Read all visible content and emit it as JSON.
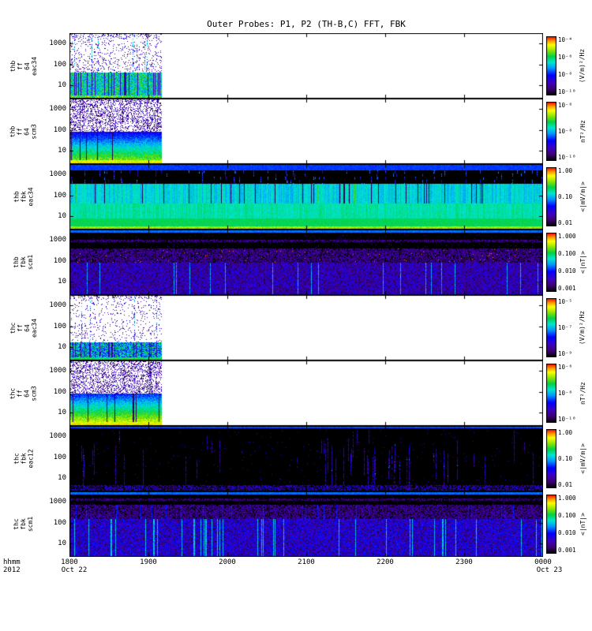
{
  "title": "Outer Probes: P1, P2 (TH-B,C) FFT, FBK",
  "footer": {
    "time_format_label": "hhmm",
    "year_label": "2012"
  },
  "chart_data": {
    "type": "heatmap",
    "title": "Outer Probes: P1, P2 (TH-B,C) FFT, FBK",
    "x_axis": {
      "ticks": [
        "1800",
        "1900",
        "2000",
        "2100",
        "2200",
        "2300",
        "0000"
      ],
      "start_label": "Oct 22",
      "end_label": "Oct 23",
      "units": "hhmm",
      "year": "2012",
      "range": [
        "2012-10-22 18:00",
        "2012-10-23 00:00"
      ]
    },
    "colors": {
      "colormap": "rainbow",
      "frame": "#000000",
      "background": "#ffffff"
    },
    "panels": [
      {
        "id": "thb-ff-64-eac34",
        "ylabel_lines": [
          "thb",
          "ff",
          "64",
          "eac34"
        ],
        "y_ticks": [
          "1000",
          "100",
          "10"
        ],
        "y_scale": "log",
        "background": "#ffffff",
        "data_end_frac": 0.195,
        "texture": "ff_e",
        "seed": 101,
        "colorbar": {
          "labels": [
            "10⁻⁴",
            "10⁻⁶",
            "10⁻⁸",
            "10⁻¹⁰"
          ],
          "unit": "(V/m)²/Hz"
        },
        "description": "E-field FFT spectra; burst data only 18:00-19:10 then blank; broadband green/cyan power below ~100 Hz, sparse dark speckle above"
      },
      {
        "id": "thb-ff-64-scm3",
        "ylabel_lines": [
          "thb",
          "ff",
          "64",
          "scm3"
        ],
        "y_ticks": [
          "1000",
          "100",
          "10"
        ],
        "y_scale": "log",
        "background": "#ffffff",
        "data_end_frac": 0.195,
        "texture": "ff_b",
        "seed": 202,
        "colorbar": {
          "labels": [
            "10⁻⁶",
            "10⁻⁸",
            "10⁻¹⁰"
          ],
          "unit": "nT²/Hz"
        },
        "description": "SCM FFT spectra; data only 18:00-19:10; banded blue-green-yellow power rising toward low frequencies, dark speckle at high frequencies"
      },
      {
        "id": "thb-fbk-eac34",
        "ylabel_lines": [
          "thb",
          "fbk",
          "eac34"
        ],
        "y_ticks": [
          "1000",
          "100",
          "10"
        ],
        "y_scale": "log",
        "background": "#000000",
        "data_end_frac": 1,
        "texture": "fbk_e34",
        "seed": 303,
        "colorbar": {
          "labels": [
            "1.00",
            "0.10",
            "0.01"
          ],
          "unit": "<|mV/m|>"
        },
        "description": "E filter-bank, full interval; blue stripe at top, black band with colored bursts, bright cyan mid band, green/yellow at lowest bins"
      },
      {
        "id": "thb-fbk-scm1",
        "ylabel_lines": [
          "thb",
          "fbk",
          "scm1"
        ],
        "y_ticks": [
          "1000",
          "100",
          "10"
        ],
        "y_scale": "log",
        "background": "#000000",
        "data_end_frac": 1,
        "texture": "fbk_b1",
        "seed": 404,
        "colorbar": {
          "labels": [
            "1.000",
            "0.100",
            "0.010",
            "0.001"
          ],
          "unit": "<|nT|>"
        },
        "description": "SCM filter-bank, full interval; thin blue top line, black band, purple mid band, blue/purple speckle at low bins"
      },
      {
        "id": "thc-ff-64-eac34",
        "ylabel_lines": [
          "thc",
          "ff",
          "64",
          "eac34"
        ],
        "y_ticks": [
          "1000",
          "100",
          "10"
        ],
        "y_scale": "log",
        "background": "#ffffff",
        "data_end_frac": 0.195,
        "texture": "ff_e2",
        "seed": 505,
        "colorbar": {
          "labels": [
            "10⁻⁵",
            "10⁻⁷",
            "10⁻⁹"
          ],
          "unit": "(V/m)²/Hz"
        },
        "description": "E-field FFT spectra; data only 18:00-19:10; cyan/green band at low frequency, sparse dark dots above with dotted vertical bursts"
      },
      {
        "id": "thc-ff-64-scm3",
        "ylabel_lines": [
          "thc",
          "ff",
          "64",
          "scm3"
        ],
        "y_ticks": [
          "1000",
          "100",
          "10"
        ],
        "y_scale": "log",
        "background": "#ffffff",
        "data_end_frac": 0.195,
        "texture": "ff_b2",
        "seed": 606,
        "colorbar": {
          "labels": [
            "10⁻⁶",
            "10⁻⁸",
            "10⁻¹⁰"
          ],
          "unit": "nT²/Hz"
        },
        "description": "SCM FFT spectra; data only 18:00-19:10; strong yellow/green at lowest frequencies grading to blue, dark speckle above"
      },
      {
        "id": "thc-fbk-eac12",
        "ylabel_lines": [
          "thc",
          "fbk",
          "eac12"
        ],
        "y_ticks": [
          "1000",
          "100",
          "10"
        ],
        "y_scale": "log",
        "background": "#000000",
        "data_end_frac": 1,
        "texture": "fbk_e12",
        "seed": 707,
        "colorbar": {
          "labels": [
            "1.00",
            "0.10",
            "0.01"
          ],
          "unit": "<|mV/m|>"
        },
        "description": "E filter-bank, full interval; mostly black with scattered vertical blue/purple bursts, denser near 18:00 and 21:00-22:30, thin speckled band at bottom"
      },
      {
        "id": "thc-fbk-scm1",
        "ylabel_lines": [
          "thc",
          "fbk",
          "scm1"
        ],
        "y_ticks": [
          "1000",
          "100",
          "10"
        ],
        "y_scale": "log",
        "background": "#000000",
        "data_end_frac": 1,
        "texture": "fbk_b1c",
        "seed": 808,
        "colorbar": {
          "labels": [
            "1.000",
            "0.100",
            "0.010",
            "0.001"
          ],
          "unit": "<|nT|>"
        },
        "description": "SCM filter-bank, full interval; thin blue top line, purple mid band, blue speckle with bright cyan vertical streaks at low bins"
      }
    ]
  }
}
